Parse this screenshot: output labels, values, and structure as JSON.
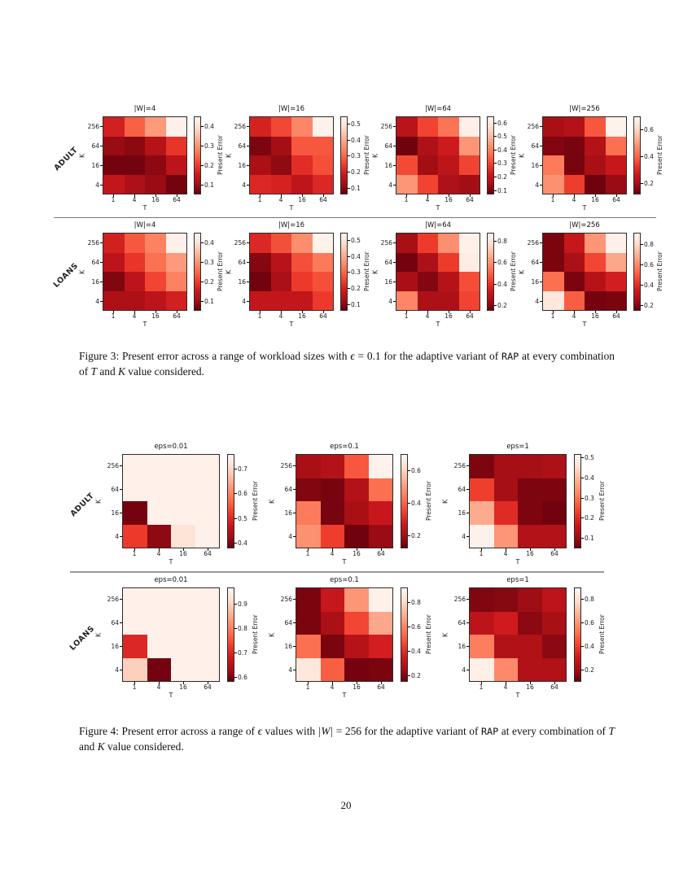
{
  "page": {
    "number": "20"
  },
  "colormap_anchors": [
    "#fff5f0",
    "#fee0d2",
    "#fcbba1",
    "#fc9272",
    "#fb6a4a",
    "#ef3b2c",
    "#cb181d",
    "#a50f15",
    "#67000d"
  ],
  "chart_data": [
    {
      "figure_label": "Figure 3",
      "type": "heatmap",
      "x": [
        "1",
        "4",
        "16",
        "64"
      ],
      "y": [
        "256",
        "64",
        "16",
        "4"
      ],
      "xlabel": "T",
      "ylabel": "K",
      "colorbar_label": "Present Error",
      "colormap": "Reds reversed (dark red = low error, light cream = high error)",
      "rows": [
        {
          "label": "ADULT",
          "panels": [
            {
              "title": "|W|=4",
              "vmin": 0.05,
              "vmax": 0.45,
              "cbar_ticks": [
                0.1,
                0.2,
                0.3,
                0.4
              ],
              "values": [
                [
                  0.16,
                  0.24,
                  0.31,
                  0.44
                ],
                [
                  0.09,
                  0.08,
                  0.12,
                  0.19
                ],
                [
                  0.06,
                  0.06,
                  0.08,
                  0.13
                ],
                [
                  0.14,
                  0.11,
                  0.09,
                  0.06
                ]
              ]
            },
            {
              "title": "|W|=16",
              "vmin": 0.06,
              "vmax": 0.55,
              "cbar_ticks": [
                0.1,
                0.2,
                0.3,
                0.4,
                0.5
              ],
              "values": [
                [
                  0.2,
                  0.26,
                  0.35,
                  0.54
                ],
                [
                  0.08,
                  0.12,
                  0.28,
                  0.28
                ],
                [
                  0.13,
                  0.1,
                  0.22,
                  0.27
                ],
                [
                  0.21,
                  0.2,
                  0.16,
                  0.21
                ]
              ]
            },
            {
              "title": "|W|=64",
              "vmin": 0.07,
              "vmax": 0.65,
              "cbar_ticks": [
                0.1,
                0.2,
                0.3,
                0.4,
                0.5,
                0.6
              ],
              "values": [
                [
                  0.18,
                  0.3,
                  0.38,
                  0.63
                ],
                [
                  0.08,
                  0.16,
                  0.22,
                  0.44
                ],
                [
                  0.31,
                  0.14,
                  0.19,
                  0.3
                ],
                [
                  0.44,
                  0.3,
                  0.16,
                  0.14
                ]
              ]
            },
            {
              "title": "|W|=256",
              "vmin": 0.12,
              "vmax": 0.7,
              "cbar_ticks": [
                0.2,
                0.4,
                0.6
              ],
              "values": [
                [
                  0.2,
                  0.22,
                  0.38,
                  0.69
                ],
                [
                  0.15,
                  0.14,
                  0.22,
                  0.42
                ],
                [
                  0.44,
                  0.14,
                  0.2,
                  0.26
                ],
                [
                  0.48,
                  0.34,
                  0.13,
                  0.18
                ]
              ]
            }
          ]
        },
        {
          "label": "LOANS",
          "panels": [
            {
              "title": "|W|=4",
              "vmin": 0.05,
              "vmax": 0.45,
              "cbar_ticks": [
                0.1,
                0.2,
                0.3,
                0.4
              ],
              "values": [
                [
                  0.16,
                  0.23,
                  0.28,
                  0.44
                ],
                [
                  0.13,
                  0.19,
                  0.26,
                  0.31
                ],
                [
                  0.07,
                  0.13,
                  0.21,
                  0.28
                ],
                [
                  0.11,
                  0.11,
                  0.13,
                  0.16
                ]
              ]
            },
            {
              "title": "|W|=16",
              "vmin": 0.06,
              "vmax": 0.55,
              "cbar_ticks": [
                0.1,
                0.2,
                0.3,
                0.4,
                0.5
              ],
              "values": [
                [
                  0.21,
                  0.27,
                  0.36,
                  0.54
                ],
                [
                  0.09,
                  0.15,
                  0.27,
                  0.33
                ],
                [
                  0.07,
                  0.13,
                  0.24,
                  0.27
                ],
                [
                  0.17,
                  0.17,
                  0.17,
                  0.24
                ]
              ]
            },
            {
              "title": "|W|=64",
              "vmin": 0.15,
              "vmax": 0.88,
              "cbar_ticks": [
                0.2,
                0.4,
                0.6,
                0.8
              ],
              "values": [
                [
                  0.25,
                  0.42,
                  0.6,
                  0.86
                ],
                [
                  0.17,
                  0.26,
                  0.42,
                  0.84
                ],
                [
                  0.25,
                  0.19,
                  0.28,
                  0.46
                ],
                [
                  0.58,
                  0.26,
                  0.26,
                  0.44
                ]
              ]
            },
            {
              "title": "|W|=256",
              "vmin": 0.15,
              "vmax": 0.92,
              "cbar_ticks": [
                0.2,
                0.4,
                0.6,
                0.8
              ],
              "values": [
                [
                  0.18,
                  0.33,
                  0.64,
                  0.9
                ],
                [
                  0.18,
                  0.26,
                  0.46,
                  0.68
                ],
                [
                  0.55,
                  0.18,
                  0.29,
                  0.36
                ],
                [
                  0.86,
                  0.51,
                  0.17,
                  0.18
                ]
              ]
            }
          ]
        }
      ],
      "caption": "Figure 3: Present error across a range of workload sizes with ϵ = 0.1 for the adaptive variant of RAP at every combination of T and K value considered.",
      "caption_segments": [
        {
          "t": "Figure 3: Present error across a range of workload sizes with ",
          "s": "plain"
        },
        {
          "t": "ϵ",
          "s": "math"
        },
        {
          "t": " = 0.1 for the adaptive variant of ",
          "s": "plain"
        },
        {
          "t": "RAP",
          "s": "mono"
        },
        {
          "t": " at every combination of ",
          "s": "plain"
        },
        {
          "t": "T",
          "s": "math"
        },
        {
          "t": " and ",
          "s": "plain"
        },
        {
          "t": "K",
          "s": "math"
        },
        {
          "t": " value considered.",
          "s": "plain"
        }
      ]
    },
    {
      "figure_label": "Figure 4",
      "type": "heatmap",
      "x": [
        "1",
        "4",
        "16",
        "64"
      ],
      "y": [
        "256",
        "64",
        "16",
        "4"
      ],
      "xlabel": "T",
      "ylabel": "K",
      "colorbar_label": "Present Error",
      "colormap": "Reds reversed (dark red = low error, light cream = high error)",
      "rows": [
        {
          "label": "ADULT",
          "panels": [
            {
              "title": "eps=0.01",
              "vmin": 0.38,
              "vmax": 0.76,
              "cbar_ticks": [
                0.4,
                0.5,
                0.6,
                0.7
              ],
              "values": [
                [
                  0.75,
                  0.75,
                  0.75,
                  0.75
                ],
                [
                  0.75,
                  0.75,
                  0.75,
                  0.75
                ],
                [
                  0.39,
                  0.75,
                  0.75,
                  0.75
                ],
                [
                  0.52,
                  0.41,
                  0.72,
                  0.75
                ]
              ]
            },
            {
              "title": "eps=0.1",
              "vmin": 0.12,
              "vmax": 0.7,
              "cbar_ticks": [
                0.2,
                0.4,
                0.6
              ],
              "values": [
                [
                  0.2,
                  0.22,
                  0.38,
                  0.69
                ],
                [
                  0.15,
                  0.14,
                  0.22,
                  0.42
                ],
                [
                  0.44,
                  0.14,
                  0.2,
                  0.26
                ],
                [
                  0.48,
                  0.34,
                  0.13,
                  0.18
                ]
              ]
            },
            {
              "title": "eps=1",
              "vmin": 0.05,
              "vmax": 0.52,
              "cbar_ticks": [
                0.1,
                0.2,
                0.3,
                0.4,
                0.5
              ],
              "values": [
                [
                  0.07,
                  0.11,
                  0.11,
                  0.12
                ],
                [
                  0.23,
                  0.11,
                  0.07,
                  0.07
                ],
                [
                  0.38,
                  0.2,
                  0.07,
                  0.06
                ],
                [
                  0.51,
                  0.35,
                  0.13,
                  0.13
                ]
              ]
            }
          ]
        },
        {
          "label": "LOANS",
          "panels": [
            {
              "title": "eps=0.01",
              "vmin": 0.58,
              "vmax": 0.97,
              "cbar_ticks": [
                0.6,
                0.7,
                0.8,
                0.9
              ],
              "values": [
                [
                  0.96,
                  0.96,
                  0.96,
                  0.96
                ],
                [
                  0.96,
                  0.96,
                  0.96,
                  0.96
                ],
                [
                  0.7,
                  0.96,
                  0.96,
                  0.96
                ],
                [
                  0.9,
                  0.59,
                  0.96,
                  0.96
                ]
              ]
            },
            {
              "title": "eps=0.1",
              "vmin": 0.15,
              "vmax": 0.92,
              "cbar_ticks": [
                0.2,
                0.4,
                0.6,
                0.8
              ],
              "values": [
                [
                  0.18,
                  0.33,
                  0.64,
                  0.9
                ],
                [
                  0.18,
                  0.26,
                  0.46,
                  0.68
                ],
                [
                  0.55,
                  0.18,
                  0.29,
                  0.36
                ],
                [
                  0.86,
                  0.51,
                  0.17,
                  0.18
                ]
              ]
            },
            {
              "title": "eps=1",
              "vmin": 0.1,
              "vmax": 0.9,
              "cbar_ticks": [
                0.2,
                0.4,
                0.6,
                0.8
              ],
              "values": [
                [
                  0.14,
                  0.15,
                  0.19,
                  0.26
                ],
                [
                  0.26,
                  0.31,
                  0.16,
                  0.21
                ],
                [
                  0.55,
                  0.23,
                  0.23,
                  0.16
                ],
                [
                  0.87,
                  0.58,
                  0.23,
                  0.23
                ]
              ]
            }
          ]
        }
      ],
      "caption": "Figure 4: Present error across a range of ϵ values with |W| = 256 for the adaptive variant of RAP at every combination of T and K value considered.",
      "caption_segments": [
        {
          "t": "Figure 4: Present error across a range of ",
          "s": "plain"
        },
        {
          "t": "ϵ",
          "s": "math"
        },
        {
          "t": " values with ",
          "s": "plain"
        },
        {
          "t": "|W|",
          "s": "math"
        },
        {
          "t": " = 256 for the adaptive variant of ",
          "s": "plain"
        },
        {
          "t": "RAP",
          "s": "mono"
        },
        {
          "t": " at every combination of ",
          "s": "plain"
        },
        {
          "t": "T",
          "s": "math"
        },
        {
          "t": " and ",
          "s": "plain"
        },
        {
          "t": "K",
          "s": "math"
        },
        {
          "t": " value considered.",
          "s": "plain"
        }
      ]
    }
  ]
}
